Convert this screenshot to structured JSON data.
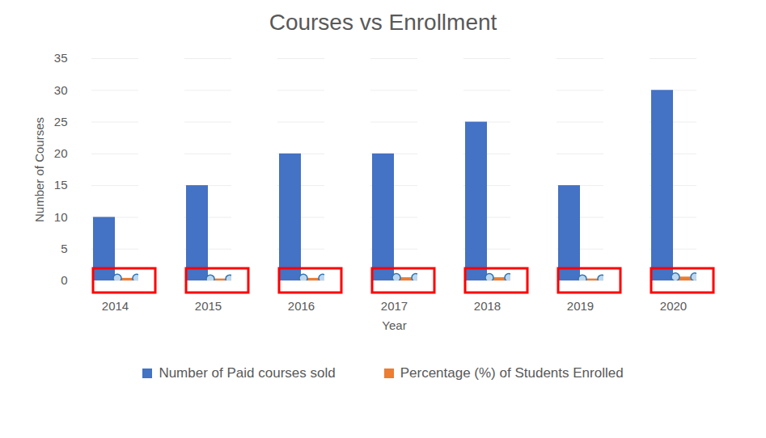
{
  "chart_data": {
    "type": "bar",
    "title": "Courses vs Enrollment",
    "x_label": "Year",
    "y_label": "Number of Courses",
    "categories": [
      "2014",
      "2015",
      "2016",
      "2017",
      "2018",
      "2019",
      "2020"
    ],
    "series": [
      {
        "name": "Number of Paid courses sold",
        "color": "#4472c4",
        "values": [
          10,
          15,
          20,
          20,
          25,
          15,
          30
        ]
      },
      {
        "name": "Percentage (%) of Students Enrolled",
        "color": "#ed7d31",
        "values": [
          0.4,
          0.3,
          0.4,
          0.5,
          0.5,
          0.3,
          0.6
        ]
      }
    ],
    "ylim": [
      0,
      35
    ],
    "yticks": [
      0,
      5,
      10,
      15,
      20,
      25,
      30,
      35
    ],
    "grid": true,
    "legend": "bottom"
  }
}
